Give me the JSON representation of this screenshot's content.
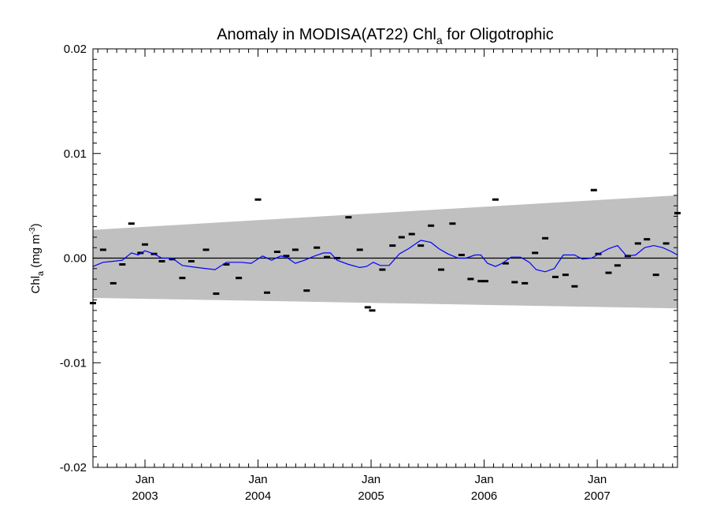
{
  "chart_data": {
    "type": "line",
    "title": {
      "main": "Anomaly in MODISA(AT22) Chl",
      "sub": "a",
      "rest": " for Oligotrophic"
    },
    "ylabel": {
      "main": "Chl",
      "sub": "a",
      "rest": " (mg m",
      "sup": "-3",
      "close": ")"
    },
    "ylim": [
      -0.02,
      0.02
    ],
    "y_ticks": [
      {
        "value": 0.02,
        "label": "0.02"
      },
      {
        "value": 0.01,
        "label": "0.01"
      },
      {
        "value": 0.0,
        "label": "0.00"
      },
      {
        "value": -0.01,
        "label": "-0.01"
      },
      {
        "value": -0.02,
        "label": "-0.02"
      }
    ],
    "xlim": [
      2002.54,
      2007.71
    ],
    "x_ticks": [
      {
        "value": 2003.0,
        "month": "Jan",
        "year": "2003"
      },
      {
        "value": 2004.0,
        "month": "Jan",
        "year": "2004"
      },
      {
        "value": 2005.0,
        "month": "Jan",
        "year": "2005"
      },
      {
        "value": 2006.0,
        "month": "Jan",
        "year": "2006"
      },
      {
        "value": 2007.0,
        "month": "Jan",
        "year": "2007"
      }
    ],
    "uncertainty_band": {
      "color": "#c0c0c0",
      "upper": [
        [
          2002.54,
          0.0027
        ],
        [
          2007.71,
          0.006
        ]
      ],
      "lower": [
        [
          2002.54,
          -0.0038
        ],
        [
          2007.71,
          -0.0048
        ]
      ]
    },
    "zero_line": 0.0,
    "grid": false,
    "series": [
      {
        "kind": "points",
        "color": "#000000",
        "values": [
          [
            2002.54,
            -0.0043
          ],
          [
            2002.63,
            0.0008
          ],
          [
            2002.72,
            -0.0024
          ],
          [
            2002.8,
            -0.0006
          ],
          [
            2002.88,
            0.0033
          ],
          [
            2002.96,
            0.0005
          ],
          [
            2003.0,
            0.0013
          ],
          [
            2003.08,
            0.0004
          ],
          [
            2003.15,
            -0.0003
          ],
          [
            2003.24,
            -0.0001
          ],
          [
            2003.33,
            -0.0019
          ],
          [
            2003.41,
            -0.0003
          ],
          [
            2003.54,
            0.0008
          ],
          [
            2003.63,
            -0.0034
          ],
          [
            2003.72,
            -0.0006
          ],
          [
            2003.83,
            -0.0019
          ],
          [
            2004.0,
            0.0056
          ],
          [
            2004.08,
            -0.0033
          ],
          [
            2004.17,
            0.0006
          ],
          [
            2004.25,
            0.0002
          ],
          [
            2004.33,
            0.0008
          ],
          [
            2004.43,
            -0.0031
          ],
          [
            2004.52,
            0.001
          ],
          [
            2004.61,
            0.0001
          ],
          [
            2004.7,
            0.0
          ],
          [
            2004.8,
            0.0039
          ],
          [
            2004.9,
            0.0008
          ],
          [
            2004.97,
            -0.0047
          ],
          [
            2005.01,
            -0.005
          ],
          [
            2005.1,
            -0.0011
          ],
          [
            2005.19,
            0.0012
          ],
          [
            2005.27,
            0.002
          ],
          [
            2005.36,
            0.0023
          ],
          [
            2005.44,
            0.0012
          ],
          [
            2005.53,
            0.0031
          ],
          [
            2005.62,
            -0.0011
          ],
          [
            2005.72,
            0.0033
          ],
          [
            2005.8,
            0.0003
          ],
          [
            2005.88,
            -0.002
          ],
          [
            2005.97,
            -0.0022
          ],
          [
            2006.01,
            -0.0022
          ],
          [
            2006.1,
            0.0056
          ],
          [
            2006.19,
            -0.0005
          ],
          [
            2006.27,
            -0.0023
          ],
          [
            2006.36,
            -0.0024
          ],
          [
            2006.45,
            0.0005
          ],
          [
            2006.54,
            0.0019
          ],
          [
            2006.63,
            -0.0018
          ],
          [
            2006.72,
            -0.0016
          ],
          [
            2006.8,
            -0.0027
          ],
          [
            2006.97,
            0.0065
          ],
          [
            2007.01,
            0.0004
          ],
          [
            2007.1,
            -0.0014
          ],
          [
            2007.18,
            -0.0007
          ],
          [
            2007.27,
            0.0002
          ],
          [
            2007.36,
            0.0014
          ],
          [
            2007.44,
            0.0018
          ],
          [
            2007.52,
            -0.0016
          ],
          [
            2007.61,
            0.0014
          ],
          [
            2007.71,
            0.0043
          ]
        ]
      },
      {
        "kind": "line",
        "color": "#0000ff",
        "values": [
          [
            2002.54,
            -0.0008
          ],
          [
            2002.63,
            -0.0004
          ],
          [
            2002.72,
            -0.0003
          ],
          [
            2002.8,
            -0.0002
          ],
          [
            2002.88,
            0.0005
          ],
          [
            2002.94,
            0.0003
          ],
          [
            2003.0,
            0.0007
          ],
          [
            2003.08,
            0.0004
          ],
          [
            2003.15,
            0.0
          ],
          [
            2003.24,
            0.0
          ],
          [
            2003.33,
            -0.0007
          ],
          [
            2003.46,
            -0.0009
          ],
          [
            2003.62,
            -0.0011
          ],
          [
            2003.72,
            -0.0004
          ],
          [
            2003.85,
            -0.0004
          ],
          [
            2003.94,
            -0.0005
          ],
          [
            2004.04,
            0.0002
          ],
          [
            2004.12,
            -0.0002
          ],
          [
            2004.2,
            0.0002
          ],
          [
            2004.25,
            0.0001
          ],
          [
            2004.33,
            -0.0005
          ],
          [
            2004.41,
            -0.0002
          ],
          [
            2004.5,
            0.0002
          ],
          [
            2004.58,
            0.0005
          ],
          [
            2004.64,
            0.0005
          ],
          [
            2004.7,
            -0.0002
          ],
          [
            2004.8,
            -0.0006
          ],
          [
            2004.9,
            -0.0009
          ],
          [
            2004.96,
            -0.0008
          ],
          [
            2005.02,
            -0.0004
          ],
          [
            2005.08,
            -0.0007
          ],
          [
            2005.16,
            -0.0007
          ],
          [
            2005.25,
            0.0004
          ],
          [
            2005.33,
            0.0009
          ],
          [
            2005.44,
            0.0017
          ],
          [
            2005.53,
            0.0015
          ],
          [
            2005.6,
            0.0009
          ],
          [
            2005.68,
            0.0004
          ],
          [
            2005.77,
            0.0
          ],
          [
            2005.84,
            0.0
          ],
          [
            2005.92,
            0.0003
          ],
          [
            2005.97,
            0.0003
          ],
          [
            2006.03,
            -0.0005
          ],
          [
            2006.1,
            -0.0008
          ],
          [
            2006.16,
            -0.0005
          ],
          [
            2006.24,
            0.0001
          ],
          [
            2006.32,
            0.0001
          ],
          [
            2006.4,
            -0.0004
          ],
          [
            2006.46,
            -0.0011
          ],
          [
            2006.54,
            -0.0013
          ],
          [
            2006.62,
            -0.001
          ],
          [
            2006.7,
            0.0003
          ],
          [
            2006.8,
            0.0003
          ],
          [
            2006.87,
            -0.0001
          ],
          [
            2006.95,
            0.0
          ],
          [
            2007.03,
            0.0005
          ],
          [
            2007.1,
            0.0009
          ],
          [
            2007.18,
            0.0012
          ],
          [
            2007.26,
            0.0002
          ],
          [
            2007.34,
            0.0003
          ],
          [
            2007.42,
            0.001
          ],
          [
            2007.5,
            0.0012
          ],
          [
            2007.58,
            0.001
          ],
          [
            2007.66,
            0.0006
          ],
          [
            2007.71,
            0.0003
          ]
        ]
      }
    ]
  }
}
